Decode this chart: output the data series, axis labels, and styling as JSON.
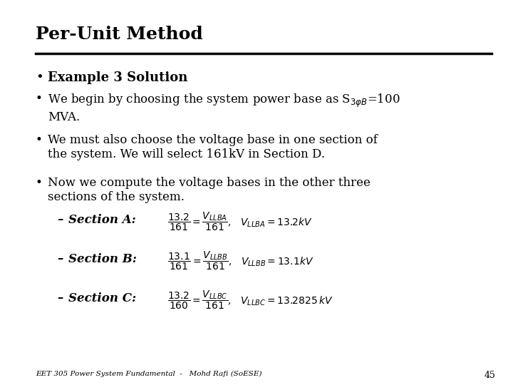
{
  "title": "Per-Unit Method",
  "bg_color": "#ffffff",
  "text_color": "#000000",
  "slide_number": "45",
  "footer": "EET 305 Power System Fundamental  -   Mohd Rafi (SoESE)",
  "title_fontsize": 18,
  "bullet1_fontsize": 13,
  "body_fontsize": 12,
  "formula_fontsize": 10,
  "footer_fontsize": 7.5,
  "bullet1_bold": "Example 3 Solution",
  "bullet2": "We begin by choosing the system power base as S$_{3\\varphi B}$=100\nMVA.",
  "bullet3": "We must also choose the voltage base in one section of\nthe system. We will select 161kV in Section D.",
  "bullet4": "Now we compute the voltage bases in the other three\nsections of the system.",
  "sub_a_label": "Section A:",
  "sub_b_label": "Section B:",
  "sub_c_label": "Section C:",
  "sub_a_formula": "$\\dfrac{13.2}{161} = \\dfrac{V_{LLBA}}{161}$,   $V_{LLBA} = 13.2kV$",
  "sub_b_formula": "$\\dfrac{13.1}{161} = \\dfrac{V_{LLBB}}{161}$,   $V_{LLBB} = 13.1kV$",
  "sub_c_formula": "$\\dfrac{13.2}{160} = \\dfrac{V_{LLBC}}{161}$,   $V_{LLBC} = 13.2825\\,kV$"
}
